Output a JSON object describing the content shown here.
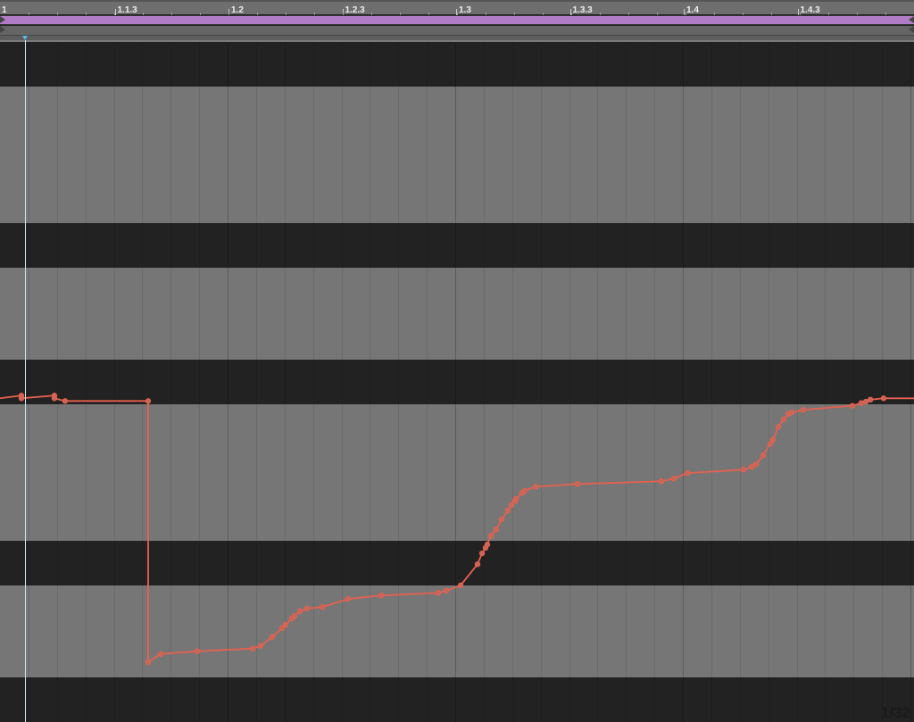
{
  "ruler": {
    "ticks": [
      {
        "label": "1",
        "beat": 0
      },
      {
        "label": "1.1.3",
        "beat": 0.5
      },
      {
        "label": "1.2",
        "beat": 1
      },
      {
        "label": "1.2.3",
        "beat": 1.5
      },
      {
        "label": "1.3",
        "beat": 2
      },
      {
        "label": "1.3.3",
        "beat": 2.5
      },
      {
        "label": "1.4",
        "beat": 3
      },
      {
        "label": "1.4.3",
        "beat": 3.5
      }
    ]
  },
  "loop_color": "#b07cc6",
  "grid": {
    "label": "1/32",
    "light_band": "#767676",
    "dark_band": "#222222"
  },
  "chart_data": {
    "type": "line",
    "title": "",
    "xlabel": "",
    "ylabel": "",
    "x_unit": "beats",
    "xlim": [
      0,
      4.016
    ],
    "ylim": [
      0,
      1
    ],
    "grid": true,
    "color": "#e8604f",
    "points": [
      [
        0,
        0.476
      ],
      [
        0.094,
        0.48
      ],
      [
        0.094,
        0.476
      ],
      [
        0.239,
        0.48
      ],
      [
        0.239,
        0.476
      ],
      [
        0.286,
        0.472
      ],
      [
        0.651,
        0.472
      ],
      [
        0.651,
        0.088
      ],
      [
        0.706,
        0.1
      ],
      [
        0.867,
        0.104
      ],
      [
        1.11,
        0.108
      ],
      [
        1.145,
        0.112
      ],
      [
        1.196,
        0.125
      ],
      [
        1.239,
        0.138
      ],
      [
        1.255,
        0.143
      ],
      [
        1.282,
        0.152
      ],
      [
        1.294,
        0.156
      ],
      [
        1.318,
        0.163
      ],
      [
        1.349,
        0.167
      ],
      [
        1.416,
        0.169
      ],
      [
        1.529,
        0.181
      ],
      [
        1.675,
        0.186
      ],
      [
        1.925,
        0.19
      ],
      [
        1.961,
        0.193
      ],
      [
        2.024,
        0.201
      ],
      [
        2.098,
        0.232
      ],
      [
        2.118,
        0.248
      ],
      [
        2.133,
        0.256
      ],
      [
        2.141,
        0.261
      ],
      [
        2.157,
        0.274
      ],
      [
        2.18,
        0.283
      ],
      [
        2.204,
        0.298
      ],
      [
        2.231,
        0.311
      ],
      [
        2.247,
        0.319
      ],
      [
        2.263,
        0.325
      ],
      [
        2.267,
        0.328
      ],
      [
        2.294,
        0.337
      ],
      [
        2.306,
        0.34
      ],
      [
        2.353,
        0.346
      ],
      [
        2.537,
        0.35
      ],
      [
        2.906,
        0.354
      ],
      [
        2.961,
        0.358
      ],
      [
        3.02,
        0.366
      ],
      [
        3.267,
        0.371
      ],
      [
        3.302,
        0.375
      ],
      [
        3.322,
        0.379
      ],
      [
        3.353,
        0.392
      ],
      [
        3.384,
        0.409
      ],
      [
        3.396,
        0.415
      ],
      [
        3.42,
        0.434
      ],
      [
        3.443,
        0.445
      ],
      [
        3.463,
        0.453
      ],
      [
        3.478,
        0.455
      ],
      [
        3.529,
        0.459
      ],
      [
        3.745,
        0.465
      ],
      [
        3.784,
        0.469
      ],
      [
        3.804,
        0.471
      ],
      [
        3.824,
        0.474
      ],
      [
        3.882,
        0.476
      ],
      [
        4.016,
        0.476
      ]
    ]
  }
}
